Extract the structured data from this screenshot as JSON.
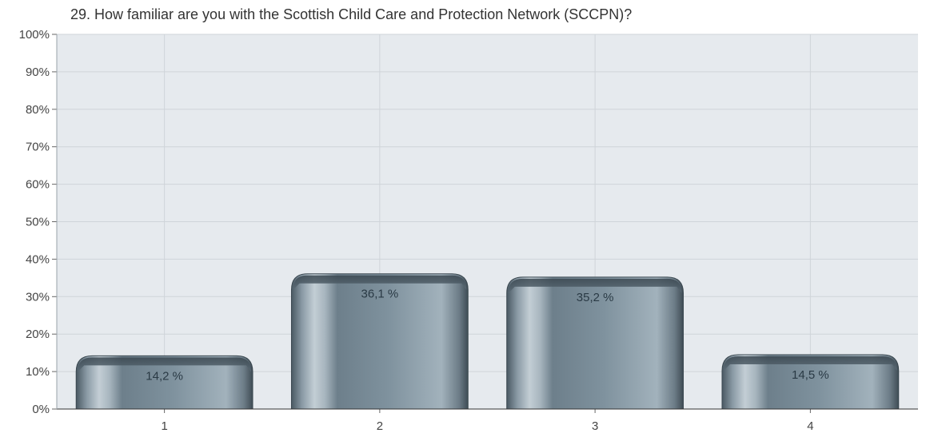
{
  "chart_data": {
    "type": "bar",
    "title": "29. How familiar are you with the Scottish Child Care and Protection Network (SCCPN)?",
    "xlabel": "",
    "ylabel": "",
    "categories": [
      "1",
      "2",
      "3",
      "4"
    ],
    "values": [
      14.2,
      36.1,
      35.2,
      14.5
    ],
    "data_labels": [
      "14,2 %",
      "36,1 %",
      "35,2 %",
      "14,5 %"
    ],
    "y_ticks": [
      "0%",
      "10%",
      "20%",
      "30%",
      "40%",
      "50%",
      "60%",
      "70%",
      "80%",
      "90%",
      "100%"
    ],
    "ylim": [
      0,
      100
    ],
    "grid": true,
    "legend": "none",
    "colors": {
      "plot_background": "#e6eaee",
      "bar_light": "#a9b7c1",
      "bar_mid": "#7d909c",
      "bar_dark": "#44525c",
      "grid": "#cfd4d9"
    }
  }
}
